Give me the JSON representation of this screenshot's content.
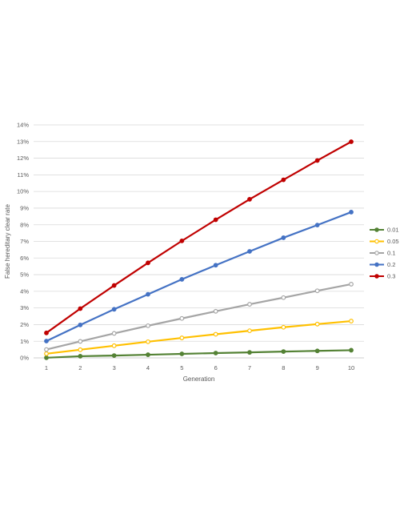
{
  "chart_data": {
    "type": "line",
    "title": "",
    "xlabel": "Generation",
    "ylabel": "False hereditary clear rate",
    "x": [
      1,
      2,
      3,
      4,
      5,
      6,
      7,
      8,
      9,
      10
    ],
    "ylim": [
      0,
      0.14
    ],
    "y_ticks": [
      "0%",
      "1%",
      "2%",
      "3%",
      "4%",
      "5%",
      "6%",
      "7%",
      "8%",
      "9%",
      "10%",
      "11%",
      "12%",
      "13%",
      "14%"
    ],
    "grid": true,
    "legend_position": "right",
    "series": [
      {
        "name": "0.01",
        "color": "#548235",
        "marker_fill": "filled",
        "values": [
          0.0001,
          0.001,
          0.0014,
          0.0019,
          0.0024,
          0.0029,
          0.0033,
          0.0038,
          0.0042,
          0.0046
        ]
      },
      {
        "name": "0.05",
        "color": "#ffc000",
        "marker_fill": "hollow",
        "values": [
          0.0025,
          0.0049,
          0.0073,
          0.0097,
          0.012,
          0.0142,
          0.0163,
          0.0184,
          0.0203,
          0.0221
        ]
      },
      {
        "name": "0.1",
        "color": "#a5a5a5",
        "marker_fill": "hollow",
        "values": [
          0.005,
          0.0099,
          0.0147,
          0.0193,
          0.0237,
          0.028,
          0.0322,
          0.0362,
          0.0403,
          0.0443
        ]
      },
      {
        "name": "0.2",
        "color": "#4472c4",
        "marker_fill": "filled",
        "values": [
          0.0101,
          0.0198,
          0.0292,
          0.0382,
          0.0472,
          0.0557,
          0.064,
          0.0722,
          0.0798,
          0.0876
        ]
      },
      {
        "name": "0.3",
        "color": "#c00000",
        "marker_fill": "filled",
        "values": [
          0.015,
          0.0296,
          0.0435,
          0.0571,
          0.0703,
          0.083,
          0.0953,
          0.107,
          0.1186,
          0.1299
        ]
      }
    ]
  }
}
